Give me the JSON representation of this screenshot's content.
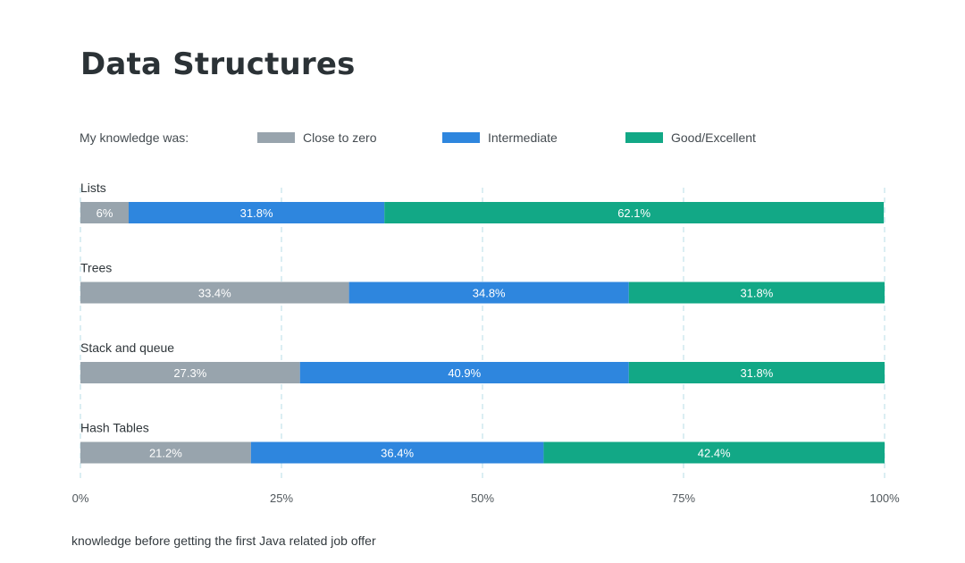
{
  "chart_data": {
    "type": "bar",
    "orientation": "horizontal",
    "stacked": true,
    "title": "Data Structures",
    "legend_title": "My knowledge was:",
    "legend_position": "top",
    "categories": [
      "Lists",
      "Trees",
      "Stack and queue",
      "Hash Tables"
    ],
    "series": [
      {
        "name": "Close to zero",
        "color": "#98a4ad",
        "values": [
          6,
          33.4,
          27.3,
          21.2
        ],
        "labels": [
          "6%",
          "33.4%",
          "27.3%",
          "21.2%"
        ]
      },
      {
        "name": "Intermediate",
        "color": "#2e86de",
        "values": [
          31.8,
          34.8,
          40.9,
          36.4
        ],
        "labels": [
          "31.8%",
          "34.8%",
          "40.9%",
          "36.4%"
        ]
      },
      {
        "name": "Good/Excellent",
        "color": "#12a886",
        "values": [
          62.1,
          31.8,
          31.8,
          42.4
        ],
        "labels": [
          "62.1%",
          "31.8%",
          "31.8%",
          "42.4%"
        ]
      }
    ],
    "xlim": [
      0,
      100
    ],
    "x_ticks": [
      0,
      25,
      50,
      75,
      100
    ],
    "x_tick_labels": [
      "0%",
      "25%",
      "50%",
      "75%",
      "100%"
    ],
    "grid": true,
    "xlabel": "knowledge before getting the first Java related job offer"
  }
}
